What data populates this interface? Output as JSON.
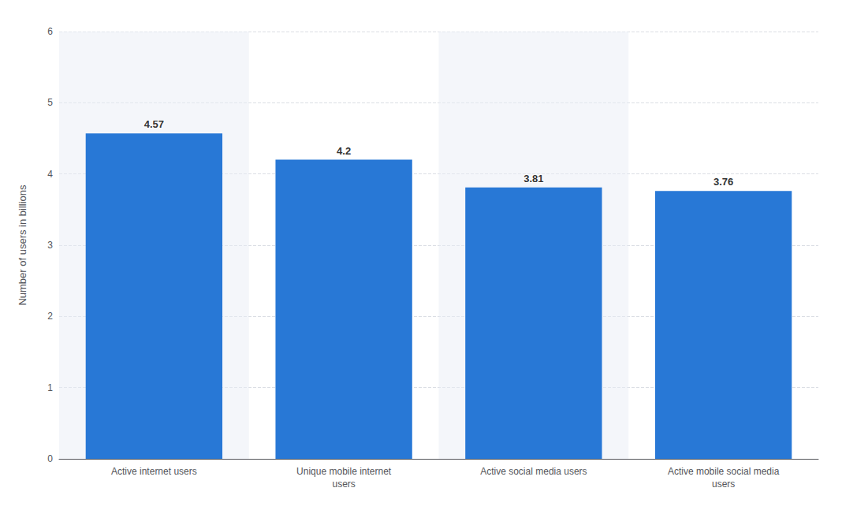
{
  "chart_data": {
    "type": "bar",
    "categories": [
      "Active internet users",
      "Unique mobile internet\nusers",
      "Active social media users",
      "Active mobile social media\nusers"
    ],
    "values": [
      4.57,
      4.2,
      3.81,
      3.76
    ],
    "color": "#2878d6",
    "ylabel": "Number of users in billions",
    "ylim": [
      0,
      6
    ],
    "yticks": [
      0,
      1,
      2,
      3,
      4,
      5,
      6
    ],
    "grid": true,
    "data_labels": true
  }
}
